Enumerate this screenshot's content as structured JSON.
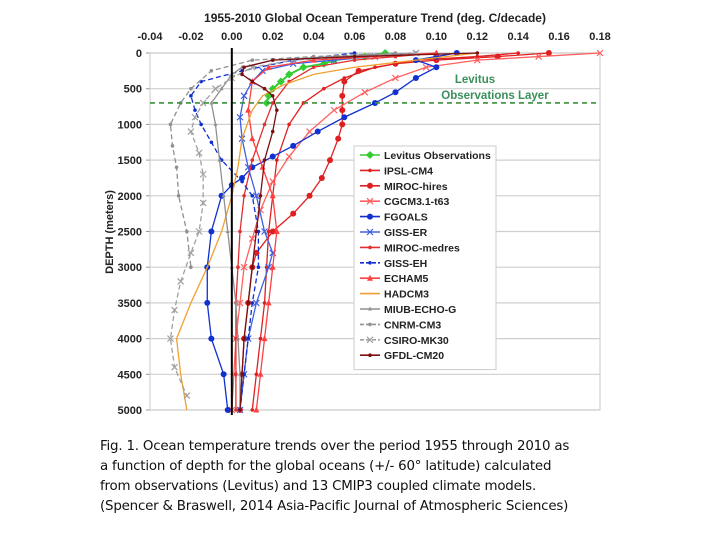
{
  "chart_data": {
    "type": "line",
    "title": "1955-2010 Global Ocean Temperature Trend (deg. C/decade)",
    "xlabel": "1955-2010 Global Ocean Temperature Trend (deg. C/decade)",
    "ylabel": "DEPTH (meters)",
    "xlim": [
      -0.04,
      0.18
    ],
    "ylim": [
      0,
      5000
    ],
    "y_inverted": true,
    "x_axis_position": "top",
    "grid": "horizontal",
    "x_ticks": [
      "-0.04",
      "-0.02",
      "0.00",
      "0.02",
      "0.04",
      "0.06",
      "0.08",
      "0.10",
      "0.12",
      "0.14",
      "0.16",
      "0.18"
    ],
    "y_ticks": [
      "0",
      "500",
      "1000",
      "1500",
      "2000",
      "2500",
      "3000",
      "3500",
      "4000",
      "4500",
      "5000"
    ],
    "legend_position": "right-middle",
    "reference_line": {
      "label": "Levitus Observations Layer",
      "depth": 700,
      "color": "#3a8f3a",
      "style": "dashed"
    },
    "annotations": [
      "Levitus",
      "Observations Layer"
    ],
    "zero_line": {
      "x": 0.0,
      "color": "#000000"
    },
    "series": [
      {
        "name": "Levitus Observations",
        "color": "#33cc33",
        "marker": "diamond",
        "dash": false,
        "points": [
          [
            0.075,
            0
          ],
          [
            0.065,
            50
          ],
          [
            0.05,
            100
          ],
          [
            0.045,
            150
          ],
          [
            0.035,
            200
          ],
          [
            0.028,
            300
          ],
          [
            0.024,
            400
          ],
          [
            0.02,
            500
          ],
          [
            0.018,
            600
          ],
          [
            0.017,
            700
          ]
        ]
      },
      {
        "name": "IPSL-CM4",
        "color": "#e02020",
        "marker": "dot-small",
        "dash": false,
        "points": [
          [
            0.14,
            0
          ],
          [
            0.12,
            50
          ],
          [
            0.09,
            100
          ],
          [
            0.07,
            200
          ],
          [
            0.055,
            350
          ],
          [
            0.045,
            500
          ],
          [
            0.035,
            700
          ],
          [
            0.028,
            1000
          ],
          [
            0.022,
            1500
          ],
          [
            0.02,
            2000
          ],
          [
            0.018,
            2500
          ],
          [
            0.017,
            3000
          ],
          [
            0.016,
            3500
          ],
          [
            0.014,
            4000
          ],
          [
            0.012,
            4500
          ],
          [
            0.01,
            5000
          ]
        ]
      },
      {
        "name": "MIROC-hires",
        "color": "#e02020",
        "marker": "dot-large",
        "dash": false,
        "points": [
          [
            0.155,
            0
          ],
          [
            0.13,
            50
          ],
          [
            0.1,
            100
          ],
          [
            0.08,
            150
          ],
          [
            0.062,
            250
          ],
          [
            0.055,
            400
          ],
          [
            0.054,
            600
          ],
          [
            0.054,
            800
          ],
          [
            0.054,
            1000
          ],
          [
            0.052,
            1200
          ],
          [
            0.048,
            1500
          ],
          [
            0.044,
            1750
          ],
          [
            0.038,
            2000
          ],
          [
            0.03,
            2250
          ],
          [
            0.02,
            2500
          ],
          [
            0.012,
            2800
          ],
          [
            0.01,
            3000
          ],
          [
            0.008,
            3500
          ],
          [
            0.006,
            4000
          ],
          [
            0.005,
            4500
          ],
          [
            0.004,
            5000
          ]
        ]
      },
      {
        "name": "CGCM3.1-t63",
        "color": "#ff6060",
        "marker": "x",
        "dash": false,
        "points": [
          [
            0.18,
            0
          ],
          [
            0.15,
            50
          ],
          [
            0.12,
            100
          ],
          [
            0.095,
            200
          ],
          [
            0.08,
            350
          ],
          [
            0.065,
            550
          ],
          [
            0.05,
            800
          ],
          [
            0.038,
            1100
          ],
          [
            0.028,
            1450
          ],
          [
            0.02,
            1800
          ],
          [
            0.014,
            2200
          ],
          [
            0.01,
            2600
          ],
          [
            0.006,
            3000
          ],
          [
            0.004,
            3500
          ],
          [
            0.002,
            4000
          ],
          [
            0.001,
            4500
          ],
          [
            0.0,
            5000
          ]
        ]
      },
      {
        "name": "FGOALS",
        "color": "#1030d0",
        "marker": "dot-large",
        "dash": false,
        "points": [
          [
            0.11,
            0
          ],
          [
            0.1,
            50
          ],
          [
            0.09,
            100
          ],
          [
            0.1,
            200
          ],
          [
            0.09,
            350
          ],
          [
            0.08,
            550
          ],
          [
            0.07,
            700
          ],
          [
            0.055,
            900
          ],
          [
            0.042,
            1100
          ],
          [
            0.03,
            1300
          ],
          [
            0.02,
            1450
          ],
          [
            0.01,
            1600
          ],
          [
            0.005,
            1750
          ],
          [
            0.0,
            1850
          ],
          [
            -0.005,
            2000
          ],
          [
            -0.01,
            2500
          ],
          [
            -0.012,
            3000
          ],
          [
            -0.012,
            3500
          ],
          [
            -0.01,
            4000
          ],
          [
            -0.004,
            4500
          ],
          [
            -0.002,
            5000
          ]
        ]
      },
      {
        "name": "GISS-ER",
        "color": "#4060e0",
        "marker": "x",
        "dash": false,
        "points": [
          [
            0.09,
            0
          ],
          [
            0.07,
            50
          ],
          [
            0.05,
            100
          ],
          [
            0.03,
            150
          ],
          [
            0.015,
            250
          ],
          [
            0.01,
            400
          ],
          [
            0.006,
            600
          ],
          [
            0.004,
            900
          ],
          [
            0.005,
            1200
          ],
          [
            0.008,
            1600
          ],
          [
            0.012,
            2000
          ],
          [
            0.016,
            2500
          ],
          [
            0.02,
            2800
          ],
          [
            0.018,
            3000
          ],
          [
            0.012,
            3500
          ],
          [
            0.008,
            4000
          ],
          [
            0.006,
            4500
          ],
          [
            0.004,
            5000
          ]
        ]
      },
      {
        "name": "MIROC-medres",
        "color": "#e03030",
        "marker": "dot-small",
        "dash": false,
        "points": [
          [
            0.1,
            0
          ],
          [
            0.08,
            50
          ],
          [
            0.06,
            100
          ],
          [
            0.04,
            200
          ],
          [
            0.028,
            400
          ],
          [
            0.02,
            700
          ],
          [
            0.016,
            1000
          ],
          [
            0.01,
            1500
          ],
          [
            0.006,
            2000
          ],
          [
            0.004,
            2500
          ],
          [
            0.003,
            3000
          ],
          [
            0.002,
            3500
          ],
          [
            0.002,
            4000
          ],
          [
            0.002,
            4500
          ],
          [
            0.002,
            5000
          ]
        ]
      },
      {
        "name": "GISS-EH",
        "color": "#1030d0",
        "marker": "dot-small",
        "dash": true,
        "points": [
          [
            0.06,
            0
          ],
          [
            0.03,
            100
          ],
          [
            0.005,
            250
          ],
          [
            -0.015,
            400
          ],
          [
            -0.02,
            600
          ],
          [
            -0.018,
            800
          ],
          [
            -0.015,
            1000
          ],
          [
            -0.01,
            1250
          ],
          [
            -0.005,
            1500
          ],
          [
            0.005,
            1800
          ],
          [
            0.01,
            2000
          ],
          [
            0.013,
            2500
          ],
          [
            0.013,
            3000
          ],
          [
            0.01,
            3500
          ],
          [
            0.008,
            4000
          ],
          [
            0.006,
            4500
          ],
          [
            0.004,
            5000
          ]
        ]
      },
      {
        "name": "ECHAM5",
        "color": "#ff4040",
        "marker": "triangle",
        "dash": false,
        "points": [
          [
            0.1,
            0
          ],
          [
            0.07,
            50
          ],
          [
            0.04,
            100
          ],
          [
            0.018,
            200
          ],
          [
            0.01,
            400
          ],
          [
            0.008,
            800
          ],
          [
            0.01,
            1200
          ],
          [
            0.015,
            1600
          ],
          [
            0.02,
            2000
          ],
          [
            0.022,
            2500
          ],
          [
            0.02,
            3000
          ],
          [
            0.018,
            3500
          ],
          [
            0.016,
            4000
          ],
          [
            0.014,
            4500
          ],
          [
            0.012,
            5000
          ]
        ]
      },
      {
        "name": "HADCM3",
        "color": "#f0a030",
        "marker": "none",
        "dash": false,
        "points": [
          [
            0.12,
            0
          ],
          [
            0.09,
            100
          ],
          [
            0.06,
            200
          ],
          [
            0.04,
            300
          ],
          [
            0.025,
            450
          ],
          [
            0.015,
            600
          ],
          [
            0.01,
            800
          ],
          [
            0.005,
            1200
          ],
          [
            0.003,
            1600
          ],
          [
            0.0,
            2000
          ],
          [
            -0.005,
            2500
          ],
          [
            -0.012,
            3000
          ],
          [
            -0.02,
            3500
          ],
          [
            -0.027,
            4000
          ],
          [
            -0.025,
            4500
          ],
          [
            -0.022,
            5000
          ]
        ]
      },
      {
        "name": "MIUB-ECHO-G",
        "color": "#909090",
        "marker": "triangle-small",
        "dash": false,
        "points": [
          [
            0.09,
            0
          ],
          [
            0.05,
            50
          ],
          [
            0.02,
            100
          ],
          [
            0.005,
            200
          ],
          [
            0.0,
            300
          ],
          [
            -0.005,
            500
          ],
          [
            -0.01,
            700
          ],
          [
            -0.008,
            1000
          ],
          [
            -0.006,
            1500
          ],
          [
            -0.004,
            2000
          ],
          [
            -0.002,
            2500
          ],
          [
            0.0,
            3000
          ],
          [
            0.002,
            3500
          ],
          [
            0.003,
            4000
          ],
          [
            0.004,
            4500
          ],
          [
            0.004,
            5000
          ]
        ]
      },
      {
        "name": "CNRM-CM3",
        "color": "#909090",
        "marker": "dot-small",
        "dash": true,
        "points": [
          [
            0.08,
            0
          ],
          [
            0.04,
            50
          ],
          [
            0.01,
            100
          ],
          [
            -0.01,
            250
          ],
          [
            -0.02,
            500
          ],
          [
            -0.025,
            700
          ],
          [
            -0.03,
            1000
          ],
          [
            -0.029,
            1300
          ],
          [
            -0.027,
            1600
          ],
          [
            -0.026,
            2000
          ],
          [
            -0.022,
            2500
          ],
          [
            -0.02,
            3000
          ]
        ]
      },
      {
        "name": "CSIRO-MK30",
        "color": "#a0a0a0",
        "marker": "x",
        "dash": true,
        "points": [
          [
            0.09,
            0
          ],
          [
            0.06,
            50
          ],
          [
            0.03,
            100
          ],
          [
            0.01,
            200
          ],
          [
            0.0,
            350
          ],
          [
            -0.008,
            500
          ],
          [
            -0.014,
            700
          ],
          [
            -0.018,
            900
          ],
          [
            -0.02,
            1100
          ],
          [
            -0.016,
            1400
          ],
          [
            -0.014,
            1700
          ],
          [
            -0.014,
            2100
          ],
          [
            -0.016,
            2500
          ],
          [
            -0.02,
            2800
          ],
          [
            -0.025,
            3200
          ],
          [
            -0.028,
            3600
          ],
          [
            -0.03,
            4000
          ],
          [
            -0.028,
            4400
          ],
          [
            -0.022,
            4800
          ]
        ]
      },
      {
        "name": "GFDL-CM20",
        "color": "#7a1010",
        "marker": "dot-small",
        "dash": false,
        "points": [
          [
            0.12,
            0
          ],
          [
            0.06,
            50
          ],
          [
            0.02,
            100
          ],
          [
            0.006,
            200
          ],
          [
            0.005,
            300
          ],
          [
            0.01,
            400
          ],
          [
            0.016,
            500
          ],
          [
            0.02,
            600
          ],
          [
            0.022,
            800
          ],
          [
            0.02,
            1100
          ],
          [
            0.016,
            1500
          ],
          [
            0.014,
            2000
          ],
          [
            0.012,
            2500
          ],
          [
            0.01,
            3000
          ],
          [
            0.008,
            3500
          ],
          [
            0.006,
            4000
          ],
          [
            0.005,
            4500
          ],
          [
            0.004,
            5000
          ]
        ]
      }
    ]
  },
  "caption": {
    "text": "Fig. 1.   Ocean temperature trends over the period 1955 through 2010 as\na function of depth for the global oceans (+/- 60° latitude) calculated\nfrom observations (Levitus) and 13 CMIP3 coupled climate models.\n(Spencer & Braswell, 2014 Asia-Pacific Journal of Atmospheric Sciences)"
  }
}
